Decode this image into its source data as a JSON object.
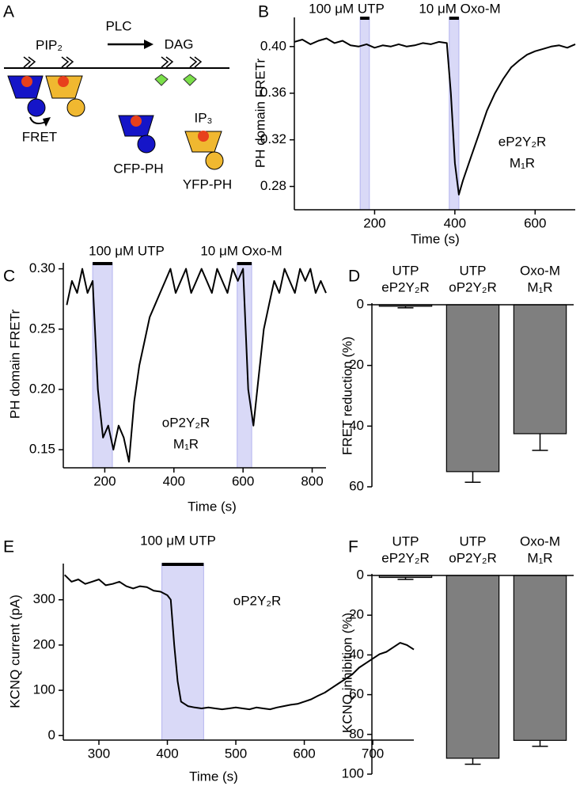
{
  "diagram": {
    "panel": "A",
    "pip2": "PIP₂",
    "plc": "PLC",
    "dag": "DAG",
    "fret": "FRET",
    "ip3": "IP₃",
    "cfp": "CFP-PH",
    "yfp": "YFP-PH"
  },
  "chart_data": [
    {
      "type": "line",
      "panel": "B",
      "ylabel": "PH domain FRETr",
      "xlabel": "Time (s)",
      "color": "#000000",
      "x": [
        0,
        20,
        40,
        60,
        80,
        100,
        120,
        140,
        160,
        180,
        200,
        220,
        240,
        260,
        280,
        300,
        320,
        340,
        360,
        380,
        390,
        400,
        410,
        420,
        440,
        460,
        480,
        500,
        520,
        540,
        560,
        580,
        600,
        620,
        640,
        660,
        680,
        700
      ],
      "values": [
        0.404,
        0.406,
        0.402,
        0.405,
        0.407,
        0.403,
        0.405,
        0.401,
        0.4,
        0.402,
        0.399,
        0.401,
        0.4,
        0.402,
        0.4,
        0.401,
        0.403,
        0.402,
        0.404,
        0.403,
        0.36,
        0.3,
        0.273,
        0.285,
        0.305,
        0.325,
        0.345,
        0.36,
        0.372,
        0.382,
        0.388,
        0.393,
        0.396,
        0.398,
        0.4,
        0.401,
        0.399,
        0.402
      ],
      "xlim": [
        0,
        700
      ],
      "xticks": [
        200,
        400,
        600
      ],
      "ylim": [
        0.26,
        0.425
      ],
      "yticks": [
        0.28,
        0.32,
        0.36,
        {
          "value": 0.4,
          "label": "0.40"
        }
      ],
      "annotations": [
        {
          "text": "100 μM UTP",
          "start": 164,
          "end": 187
        },
        {
          "text": "10 μM Oxo-M",
          "start": 386,
          "end": 410
        }
      ],
      "notes": [
        "eP2Y₂R",
        "M₁R"
      ]
    },
    {
      "type": "line",
      "panel": "C",
      "ylabel": "PH domain FRETr",
      "xlabel": "Time (s)",
      "color": "#000000",
      "x": [
        90,
        105,
        120,
        135,
        150,
        165,
        180,
        195,
        210,
        225,
        240,
        255,
        270,
        285,
        300,
        315,
        330,
        345,
        360,
        375,
        390,
        405,
        420,
        435,
        450,
        465,
        480,
        495,
        510,
        525,
        540,
        555,
        570,
        585,
        600,
        615,
        630,
        645,
        660,
        675,
        690,
        705,
        720,
        735,
        750,
        765,
        780,
        795,
        810,
        825,
        840
      ],
      "values": [
        0.27,
        0.29,
        0.28,
        0.3,
        0.28,
        0.29,
        0.2,
        0.16,
        0.17,
        0.15,
        0.17,
        0.16,
        0.14,
        0.19,
        0.22,
        0.24,
        0.26,
        0.27,
        0.28,
        0.29,
        0.3,
        0.28,
        0.29,
        0.3,
        0.28,
        0.29,
        0.3,
        0.29,
        0.28,
        0.3,
        0.29,
        0.28,
        0.3,
        0.29,
        0.3,
        0.2,
        0.17,
        0.21,
        0.25,
        0.27,
        0.29,
        0.28,
        0.3,
        0.29,
        0.28,
        0.3,
        0.29,
        0.3,
        0.28,
        0.29,
        0.28
      ],
      "xlim": [
        80,
        840
      ],
      "xticks": [
        200,
        400,
        600,
        800
      ],
      "ylim": [
        0.135,
        0.305
      ],
      "yticks": [
        0.15,
        {
          "value": 0.2,
          "label": "0.20"
        },
        0.25,
        {
          "value": 0.3,
          "label": "0.30"
        }
      ],
      "annotations": [
        {
          "text": "100 μM UTP",
          "start": 165,
          "end": 222
        },
        {
          "text": "10 μM Oxo-M",
          "start": 583,
          "end": 625
        }
      ],
      "notes": [
        "oP2Y₂R",
        "M₁R"
      ]
    },
    {
      "type": "bar",
      "panel": "D",
      "ylabel": "FRET reduction (%)",
      "color": "#7f7f7f",
      "categories": [
        "UTP",
        "UTP",
        "Oxo-M"
      ],
      "category_sublabels": [
        "eP2Y₂R",
        "oP2Y₂R",
        "M₁R"
      ],
      "values": [
        0.5,
        55,
        42.5
      ],
      "errors": [
        0.5,
        3.5,
        5.5
      ],
      "ylim": [
        0,
        60
      ],
      "yticks": [
        0,
        20,
        40,
        60
      ],
      "y_inverted": true
    },
    {
      "type": "line",
      "panel": "E",
      "ylabel": "KCNQ current (pA)",
      "xlabel": "Time (s)",
      "color": "#000000",
      "x": [
        250,
        260,
        270,
        280,
        290,
        300,
        310,
        320,
        330,
        340,
        350,
        360,
        370,
        380,
        390,
        400,
        405,
        410,
        415,
        420,
        430,
        440,
        450,
        460,
        470,
        480,
        490,
        500,
        510,
        520,
        530,
        540,
        550,
        560,
        570,
        580,
        590,
        600,
        610,
        620,
        630,
        640,
        650,
        660,
        670,
        680,
        690,
        700,
        710,
        720,
        730,
        740,
        750,
        760
      ],
      "values": [
        355,
        340,
        345,
        335,
        340,
        345,
        332,
        335,
        340,
        330,
        325,
        330,
        328,
        320,
        318,
        310,
        300,
        200,
        120,
        75,
        65,
        62,
        60,
        62,
        60,
        58,
        60,
        62,
        60,
        58,
        62,
        60,
        58,
        62,
        65,
        68,
        70,
        75,
        80,
        88,
        95,
        105,
        115,
        125,
        135,
        150,
        160,
        170,
        180,
        185,
        195,
        205,
        200,
        190
      ],
      "xlim": [
        248,
        760
      ],
      "xticks": [
        300,
        400,
        500,
        600,
        700
      ],
      "ylim": [
        -10,
        380
      ],
      "yticks": [
        0,
        100,
        200,
        300
      ],
      "annotations": [
        {
          "text": "100 μM UTP",
          "start": 392,
          "end": 453
        }
      ],
      "notes": [
        "oP2Y₂R"
      ]
    },
    {
      "type": "bar",
      "panel": "F",
      "ylabel": "KCNQ inhibition (%)",
      "color": "#7f7f7f",
      "categories": [
        "UTP",
        "UTP",
        "Oxo-M"
      ],
      "category_sublabels": [
        "eP2Y₂R",
        "oP2Y₂R",
        "M₁R"
      ],
      "values": [
        1,
        92,
        83
      ],
      "errors": [
        1,
        3,
        3
      ],
      "ylim": [
        0,
        100
      ],
      "yticks": [
        0,
        20,
        40,
        60,
        80,
        100
      ],
      "y_inverted": true
    }
  ]
}
